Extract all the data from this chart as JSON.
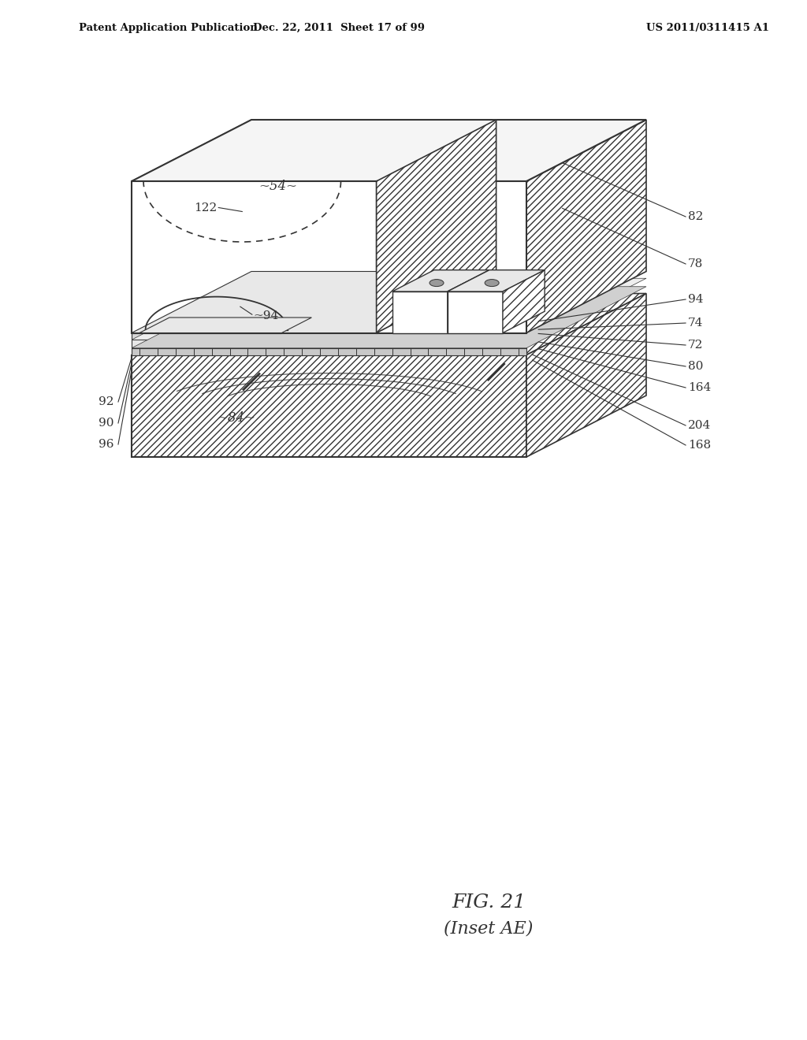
{
  "title_left": "Patent Application Publication",
  "title_mid": "Dec. 22, 2011  Sheet 17 of 99",
  "title_right": "US 2011/0311415 A1",
  "fig_label": "FIG. 21",
  "fig_sublabel": "(Inset AE)",
  "background_color": "#ffffff",
  "line_color": "#333333"
}
